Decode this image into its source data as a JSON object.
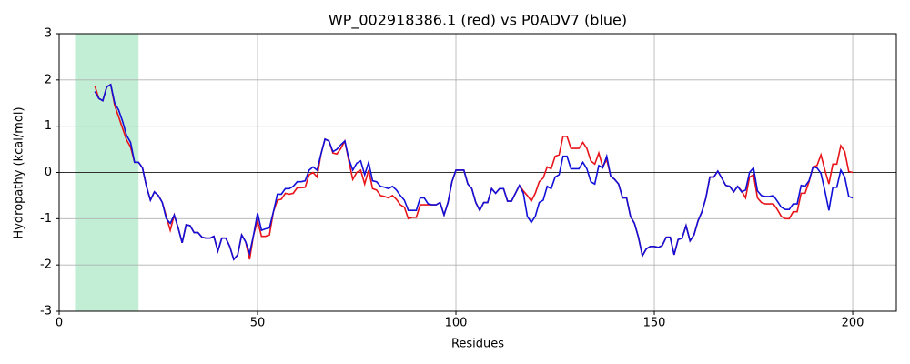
{
  "chart_data": {
    "type": "line",
    "title": "WP_002918386.1 (red) vs P0ADV7 (blue)",
    "xlabel": "Residues",
    "ylabel": "Hydropathy (kcal/mol)",
    "xlim": [
      0,
      211
    ],
    "ylim": [
      -3,
      3
    ],
    "xticks": [
      0,
      50,
      100,
      150,
      200
    ],
    "yticks": [
      -3,
      -2,
      -1,
      0,
      1,
      2,
      3
    ],
    "grid": true,
    "hline": 0,
    "hline_color": "#000000",
    "span": [
      4,
      20
    ],
    "span_color": "#c1eed5",
    "x": [
      9,
      10,
      11,
      12,
      13,
      14,
      15,
      16,
      17,
      18,
      19,
      20,
      21,
      22,
      23,
      24,
      25,
      26,
      27,
      28,
      29,
      30,
      31,
      32,
      33,
      34,
      35,
      36,
      37,
      38,
      39,
      40,
      41,
      42,
      43,
      44,
      45,
      46,
      47,
      48,
      49,
      50,
      51,
      52,
      53,
      54,
      55,
      56,
      57,
      58,
      59,
      60,
      61,
      62,
      63,
      64,
      65,
      66,
      67,
      68,
      69,
      70,
      71,
      72,
      73,
      74,
      75,
      76,
      77,
      78,
      79,
      80,
      81,
      82,
      83,
      84,
      85,
      86,
      87,
      88,
      89,
      90,
      91,
      92,
      93,
      94,
      95,
      96,
      97,
      98,
      99,
      100,
      101,
      102,
      103,
      104,
      105,
      106,
      107,
      108,
      109,
      110,
      111,
      112,
      113,
      114,
      115,
      116,
      117,
      118,
      119,
      120,
      121,
      122,
      123,
      124,
      125,
      126,
      127,
      128,
      129,
      130,
      131,
      132,
      133,
      134,
      135,
      136,
      137,
      138,
      139,
      140,
      141,
      142,
      143,
      144,
      145,
      146,
      147,
      148,
      149,
      150,
      151,
      152,
      153,
      154,
      155,
      156,
      157,
      158,
      159,
      160,
      161,
      162,
      163,
      164,
      165,
      166,
      167,
      168,
      169,
      170,
      171,
      172,
      173,
      174,
      175,
      176,
      177,
      178,
      179,
      180,
      181,
      182,
      183,
      184,
      185,
      186,
      187,
      188,
      189,
      190,
      191,
      192,
      193,
      194,
      195,
      196,
      197,
      198,
      199,
      200
    ],
    "series": [
      {
        "color": "#e8141a",
        "values": [
          1.87,
          1.6,
          1.55,
          1.85,
          1.9,
          1.45,
          1.2,
          0.95,
          0.7,
          0.55,
          0.22,
          0.22,
          0.1,
          -0.3,
          -0.6,
          -0.42,
          -0.5,
          -0.65,
          -0.95,
          -1.25,
          -0.92,
          -1.2,
          -1.52,
          -1.13,
          -1.15,
          -1.3,
          -1.3,
          -1.4,
          -1.42,
          -1.42,
          -1.38,
          -1.7,
          -1.42,
          -1.42,
          -1.6,
          -1.88,
          -1.78,
          -1.35,
          -1.5,
          -1.88,
          -1.35,
          -1.05,
          -1.38,
          -1.38,
          -1.35,
          -0.85,
          -0.6,
          -0.58,
          -0.45,
          -0.47,
          -0.45,
          -0.33,
          -0.33,
          -0.32,
          -0.05,
          0.0,
          -0.1,
          0.4,
          0.72,
          0.68,
          0.42,
          0.4,
          0.52,
          0.68,
          0.25,
          -0.15,
          0.0,
          0.05,
          -0.25,
          0.05,
          -0.35,
          -0.38,
          -0.5,
          -0.52,
          -0.55,
          -0.5,
          -0.58,
          -0.7,
          -0.75,
          -1.0,
          -0.97,
          -0.97,
          -0.7,
          -0.7,
          -0.7,
          -0.7,
          -0.7,
          -0.65,
          -0.92,
          -0.65,
          -0.2,
          0.05,
          0.05,
          0.05,
          -0.25,
          -0.35,
          -0.65,
          -0.82,
          -0.65,
          -0.65,
          -0.35,
          -0.45,
          -0.35,
          -0.35,
          -0.62,
          -0.62,
          -0.45,
          -0.28,
          -0.4,
          -0.5,
          -0.62,
          -0.45,
          -0.2,
          -0.12,
          0.12,
          0.08,
          0.35,
          0.38,
          0.78,
          0.78,
          0.52,
          0.52,
          0.52,
          0.65,
          0.52,
          0.25,
          0.18,
          0.42,
          0.12,
          0.28,
          -0.08,
          -0.15,
          -0.25,
          -0.55,
          -0.55,
          -0.95,
          -1.1,
          -1.4,
          -1.8,
          -1.65,
          -1.6,
          -1.6,
          -1.62,
          -1.58,
          -1.4,
          -1.4,
          -1.78,
          -1.45,
          -1.42,
          -1.15,
          -1.48,
          -1.35,
          -1.05,
          -0.85,
          -0.55,
          -0.1,
          -0.1,
          0.03,
          -0.12,
          -0.28,
          -0.3,
          -0.42,
          -0.3,
          -0.4,
          -0.55,
          -0.1,
          -0.05,
          -0.55,
          -0.65,
          -0.68,
          -0.68,
          -0.68,
          -0.8,
          -0.95,
          -1.0,
          -1.0,
          -0.85,
          -0.85,
          -0.45,
          -0.45,
          -0.2,
          0.12,
          0.15,
          0.38,
          0.05,
          -0.25,
          0.18,
          0.18,
          0.58,
          0.45,
          0.02,
          0.0
        ]
      },
      {
        "color": "#1010d8",
        "values": [
          1.75,
          1.6,
          1.55,
          1.85,
          1.9,
          1.5,
          1.35,
          1.1,
          0.8,
          0.65,
          0.22,
          0.22,
          0.1,
          -0.3,
          -0.6,
          -0.42,
          -0.5,
          -0.65,
          -1.0,
          -1.1,
          -0.92,
          -1.2,
          -1.52,
          -1.13,
          -1.15,
          -1.3,
          -1.3,
          -1.4,
          -1.42,
          -1.42,
          -1.38,
          -1.7,
          -1.42,
          -1.42,
          -1.6,
          -1.88,
          -1.78,
          -1.35,
          -1.5,
          -1.75,
          -1.35,
          -0.88,
          -1.25,
          -1.22,
          -1.2,
          -0.85,
          -0.47,
          -0.47,
          -0.35,
          -0.35,
          -0.3,
          -0.2,
          -0.2,
          -0.18,
          0.05,
          0.12,
          0.05,
          0.4,
          0.72,
          0.68,
          0.45,
          0.5,
          0.6,
          0.68,
          0.3,
          0.05,
          0.2,
          0.25,
          -0.05,
          0.22,
          -0.18,
          -0.2,
          -0.3,
          -0.32,
          -0.35,
          -0.3,
          -0.38,
          -0.5,
          -0.6,
          -0.82,
          -0.82,
          -0.82,
          -0.55,
          -0.55,
          -0.68,
          -0.7,
          -0.7,
          -0.65,
          -0.92,
          -0.65,
          -0.2,
          0.05,
          0.05,
          0.05,
          -0.25,
          -0.35,
          -0.65,
          -0.82,
          -0.65,
          -0.65,
          -0.35,
          -0.45,
          -0.35,
          -0.35,
          -0.62,
          -0.62,
          -0.45,
          -0.28,
          -0.45,
          -0.95,
          -1.08,
          -0.95,
          -0.65,
          -0.6,
          -0.3,
          -0.35,
          -0.1,
          -0.05,
          0.35,
          0.35,
          0.08,
          0.08,
          0.08,
          0.22,
          0.08,
          -0.2,
          -0.25,
          0.15,
          0.1,
          0.35,
          -0.08,
          -0.15,
          -0.25,
          -0.55,
          -0.55,
          -0.95,
          -1.1,
          -1.4,
          -1.8,
          -1.65,
          -1.6,
          -1.6,
          -1.62,
          -1.58,
          -1.4,
          -1.4,
          -1.78,
          -1.45,
          -1.42,
          -1.15,
          -1.48,
          -1.35,
          -1.05,
          -0.85,
          -0.55,
          -0.1,
          -0.1,
          0.03,
          -0.12,
          -0.28,
          -0.3,
          -0.42,
          -0.3,
          -0.42,
          -0.38,
          0.0,
          0.1,
          -0.4,
          -0.5,
          -0.52,
          -0.52,
          -0.5,
          -0.62,
          -0.75,
          -0.8,
          -0.8,
          -0.68,
          -0.68,
          -0.28,
          -0.3,
          -0.18,
          0.12,
          0.1,
          -0.02,
          -0.4,
          -0.82,
          -0.32,
          -0.32,
          0.05,
          -0.1,
          -0.52,
          -0.55
        ]
      }
    ]
  }
}
